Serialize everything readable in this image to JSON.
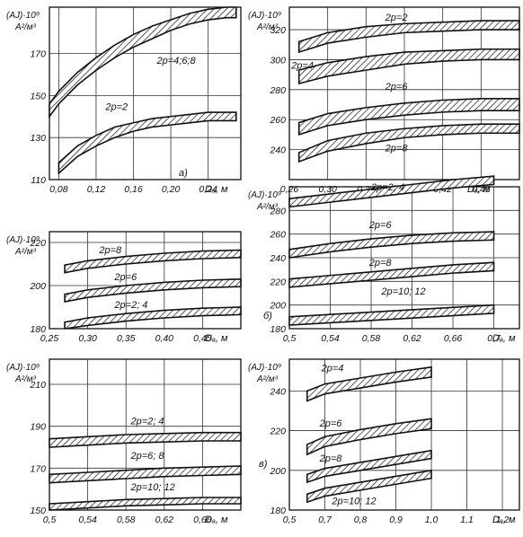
{
  "chart_data": [
    {
      "type": "area",
      "panel_label": "а)",
      "ylabel_1": "(AJ)·10⁹",
      "ylabel_2": "А²/м³",
      "xlabel": "Dₐ, м",
      "xlim": [
        0.07,
        0.275
      ],
      "ylim": [
        110,
        192
      ],
      "xticks": [
        "0,08",
        "0,12",
        "0,16",
        "0,20",
        "0,24"
      ],
      "xtick_values": [
        0.08,
        0.12,
        0.16,
        0.2,
        0.24
      ],
      "yticks": [
        "110",
        "130",
        "150",
        "170"
      ],
      "ytick_values": [
        110,
        130,
        150,
        170
      ],
      "grid": true,
      "series": [
        {
          "name": "2p=4;6;8",
          "x": [
            0.07,
            0.08,
            0.1,
            0.12,
            0.14,
            0.16,
            0.18,
            0.2,
            0.22,
            0.24,
            0.26,
            0.27
          ],
          "upper": [
            146,
            152,
            161,
            168,
            174,
            179,
            183,
            186,
            189,
            191,
            192,
            192
          ],
          "lower": [
            140,
            146,
            155,
            162,
            168,
            173,
            177,
            181,
            184,
            186,
            187,
            187
          ]
        },
        {
          "name": "2p=2",
          "x": [
            0.08,
            0.1,
            0.12,
            0.14,
            0.16,
            0.18,
            0.2,
            0.22,
            0.24,
            0.26,
            0.27
          ],
          "upper": [
            118,
            126,
            131,
            135,
            137,
            139,
            140,
            141,
            142,
            142,
            142
          ],
          "lower": [
            113,
            121,
            126,
            130,
            133,
            135,
            136,
            137,
            138,
            138,
            138
          ]
        }
      ],
      "labels": [
        {
          "text": "2p=4;6;8",
          "x": 0.185,
          "y": 165
        },
        {
          "text": "2p=2",
          "x": 0.13,
          "y": 143
        }
      ]
    },
    {
      "type": "area",
      "panel_label": "",
      "ylabel_1": "(AJ)·10⁹",
      "ylabel_2": "А²/м³",
      "xlabel": "Dₐ, м",
      "xlim": [
        0.26,
        0.5
      ],
      "ylim": [
        220,
        335
      ],
      "xticks": [
        "0,26",
        "0,30",
        "0,34",
        "0,38",
        "0,42",
        "0,46"
      ],
      "xtick_values": [
        0.26,
        0.3,
        0.34,
        0.38,
        0.42,
        0.46
      ],
      "yticks": [
        "240",
        "260",
        "280",
        "300",
        "320"
      ],
      "ytick_values": [
        240,
        260,
        280,
        300,
        320
      ],
      "grid": true,
      "series": [
        {
          "name": "2p=2",
          "x": [
            0.27,
            0.3,
            0.34,
            0.38,
            0.42,
            0.46,
            0.5
          ],
          "upper": [
            312,
            318,
            322,
            324,
            325,
            326,
            326
          ],
          "lower": [
            305,
            311,
            315,
            318,
            319,
            320,
            320
          ]
        },
        {
          "name": "2p=4",
          "x": [
            0.27,
            0.3,
            0.34,
            0.38,
            0.42,
            0.46,
            0.5
          ],
          "upper": [
            293,
            298,
            302,
            305,
            306,
            307,
            307
          ],
          "lower": [
            284,
            289,
            293,
            297,
            299,
            300,
            300
          ]
        },
        {
          "name": "2p=6",
          "x": [
            0.27,
            0.3,
            0.34,
            0.38,
            0.42,
            0.46,
            0.5
          ],
          "upper": [
            258,
            264,
            268,
            271,
            273,
            274,
            274
          ],
          "lower": [
            250,
            256,
            260,
            263,
            265,
            266,
            266
          ]
        },
        {
          "name": "2p=8",
          "x": [
            0.27,
            0.3,
            0.34,
            0.38,
            0.42,
            0.46,
            0.5
          ],
          "upper": [
            238,
            246,
            251,
            254,
            256,
            257,
            257
          ],
          "lower": [
            232,
            239,
            244,
            248,
            250,
            251,
            251
          ]
        }
      ],
      "labels": [
        {
          "text": "2p=2",
          "x": 0.36,
          "y": 326
        },
        {
          "text": "2p=4",
          "x": 0.262,
          "y": 294
        },
        {
          "text": "2p=6",
          "x": 0.36,
          "y": 280
        },
        {
          "text": "2p=8",
          "x": 0.36,
          "y": 239
        }
      ]
    },
    {
      "type": "area",
      "panel_label": "б)",
      "ylabel_1": "(AJ)·10⁹",
      "ylabel_2": "А²/м³",
      "xlabel": "Dₐ, м",
      "xlim": [
        0.25,
        0.5
      ],
      "ylim": [
        180,
        225
      ],
      "xticks": [
        "0,25",
        "0,30",
        "0,35",
        "0,40",
        "0,45"
      ],
      "xtick_values": [
        0.25,
        0.3,
        0.35,
        0.4,
        0.45
      ],
      "yticks": [
        "180",
        "200",
        "220"
      ],
      "ytick_values": [
        180,
        200,
        220
      ],
      "grid": true,
      "series": [
        {
          "name": "2p=8",
          "x": [
            0.27,
            0.3,
            0.35,
            0.4,
            0.45,
            0.5
          ],
          "upper": [
            209.5,
            211.5,
            213.5,
            215,
            216,
            216.5
          ],
          "lower": [
            206,
            208,
            210,
            211.5,
            212.5,
            213
          ]
        },
        {
          "name": "2p=6",
          "x": [
            0.27,
            0.3,
            0.35,
            0.4,
            0.45,
            0.5
          ],
          "upper": [
            196,
            198,
            200,
            201.5,
            202.5,
            203
          ],
          "lower": [
            192.5,
            194.5,
            196.5,
            198,
            199,
            199.5
          ]
        },
        {
          "name": "2p=2; 4",
          "x": [
            0.27,
            0.3,
            0.35,
            0.4,
            0.45,
            0.5
          ],
          "upper": [
            183,
            185,
            187,
            188.5,
            189.5,
            190
          ],
          "lower": [
            180,
            181.5,
            183.5,
            185,
            186,
            186.5
          ]
        }
      ],
      "labels": [
        {
          "text": "2p=8",
          "x": 0.315,
          "y": 215
        },
        {
          "text": "2p=6",
          "x": 0.335,
          "y": 202.5
        },
        {
          "text": "2p=2; 4",
          "x": 0.335,
          "y": 189.5
        }
      ]
    },
    {
      "type": "area",
      "panel_label": "б)",
      "ylabel_1": "(AJ)·10⁹",
      "ylabel_2": "А²/м³",
      "xlabel": "Dₐ, м",
      "xlim": [
        0.5,
        0.725
      ],
      "ylim": [
        180,
        300
      ],
      "xticks": [
        "0,5",
        "0,54",
        "0,58",
        "0,62",
        "0,66",
        "0,7"
      ],
      "xtick_values": [
        0.5,
        0.54,
        0.58,
        0.62,
        0.66,
        0.7
      ],
      "yticks": [
        "180",
        "200",
        "220",
        "240",
        "260",
        "280"
      ],
      "ytick_values": [
        180,
        200,
        220,
        240,
        260,
        280
      ],
      "grid": true,
      "series": [
        {
          "name": "2p=2; 4",
          "x": [
            0.5,
            0.54,
            0.58,
            0.62,
            0.66,
            0.7
          ],
          "upper": [
            290,
            294,
            298,
            302,
            306,
            309
          ],
          "lower": [
            283,
            287,
            291,
            295,
            299,
            302
          ]
        },
        {
          "name": "2p=6",
          "x": [
            0.5,
            0.54,
            0.58,
            0.62,
            0.66,
            0.7
          ],
          "upper": [
            247,
            252,
            256,
            259,
            261,
            262
          ],
          "lower": [
            240,
            245,
            249,
            252,
            254,
            255
          ]
        },
        {
          "name": "2p=8",
          "x": [
            0.5,
            0.54,
            0.58,
            0.62,
            0.66,
            0.7
          ],
          "upper": [
            222,
            225,
            228,
            231,
            234,
            236
          ],
          "lower": [
            215,
            218,
            221,
            224,
            227,
            229
          ]
        },
        {
          "name": "2p=10; 12",
          "x": [
            0.5,
            0.54,
            0.58,
            0.62,
            0.66,
            0.7
          ],
          "upper": [
            190,
            192,
            194,
            196,
            198,
            200
          ],
          "lower": [
            183,
            185,
            187,
            189,
            191,
            193
          ]
        }
      ],
      "labels": [
        {
          "text": "2p=2; 4",
          "x": 0.58,
          "y": 297
        },
        {
          "text": "2p=6",
          "x": 0.578,
          "y": 265
        },
        {
          "text": "2p=8",
          "x": 0.578,
          "y": 233
        },
        {
          "text": "2p=10; 12",
          "x": 0.59,
          "y": 209
        }
      ]
    },
    {
      "type": "area",
      "panel_label": "в)",
      "ylabel_1": "(AJ)·10⁹",
      "ylabel_2": "А²/м³",
      "xlabel": "Dₐ, м",
      "xlim": [
        0.5,
        0.7
      ],
      "ylim": [
        150,
        222
      ],
      "xticks": [
        "0,5",
        "0,54",
        "0,58",
        "0,62",
        "0,66"
      ],
      "xtick_values": [
        0.5,
        0.54,
        0.58,
        0.62,
        0.66
      ],
      "yticks": [
        "150",
        "170",
        "190",
        "210"
      ],
      "ytick_values": [
        150,
        170,
        190,
        210
      ],
      "grid": true,
      "series": [
        {
          "name": "2p=2; 4",
          "x": [
            0.5,
            0.54,
            0.58,
            0.62,
            0.66,
            0.7
          ],
          "upper": [
            184,
            185,
            186,
            186.5,
            187,
            187
          ],
          "lower": [
            180,
            181,
            182,
            182.5,
            183,
            183
          ]
        },
        {
          "name": "2p=6; 8",
          "x": [
            0.5,
            0.54,
            0.58,
            0.62,
            0.66,
            0.7
          ],
          "upper": [
            167,
            168,
            169,
            170,
            170.5,
            171
          ],
          "lower": [
            163,
            164,
            165,
            166,
            166.5,
            167
          ]
        },
        {
          "name": "2p=10; 12",
          "x": [
            0.5,
            0.54,
            0.58,
            0.62,
            0.66,
            0.7
          ],
          "upper": [
            153,
            154,
            155,
            155.5,
            156,
            156
          ],
          "lower": [
            150,
            151,
            152,
            152.5,
            153,
            153
          ]
        }
      ],
      "labels": [
        {
          "text": "2p=2; 4",
          "x": 0.585,
          "y": 191
        },
        {
          "text": "2p=6; 8",
          "x": 0.585,
          "y": 174.5
        },
        {
          "text": "2p=10; 12",
          "x": 0.585,
          "y": 159.5
        }
      ]
    },
    {
      "type": "area",
      "panel_label": "",
      "ylabel_1": "(AJ)·10⁹",
      "ylabel_2": "А²/м³",
      "xlabel": "Dₐ, м",
      "xlim": [
        0.5,
        1.25
      ],
      "ylim": [
        180,
        256
      ],
      "xticks": [
        "0,5",
        "0,7",
        "0,8",
        "0,9",
        "1,0",
        "1,1",
        "1,2"
      ],
      "xtick_values": [
        0.5,
        0.7,
        0.8,
        0.9,
        1.0,
        1.1,
        1.2
      ],
      "xtick_positions": [
        0.5,
        0.6667,
        0.8333,
        1.0,
        1.1667,
        1.3333,
        1.5
      ],
      "yticks": [
        "180",
        "200",
        "220",
        "240"
      ],
      "ytick_values": [
        180,
        200,
        220,
        240
      ],
      "grid": true,
      "series": [
        {
          "name": "2p=4",
          "x": [
            0.6,
            0.7,
            0.8,
            0.9,
            1.0
          ],
          "upper": [
            240,
            243.5,
            246.5,
            249.5,
            252
          ],
          "lower": [
            235,
            238.5,
            241.5,
            244.5,
            247
          ]
        },
        {
          "name": "2p=6",
          "x": [
            0.6,
            0.7,
            0.8,
            0.9,
            1.0
          ],
          "upper": [
            213,
            217,
            220.5,
            223.5,
            226
          ],
          "lower": [
            208,
            212,
            215.5,
            218.5,
            221
          ]
        },
        {
          "name": "2p=8",
          "x": [
            0.6,
            0.7,
            0.8,
            0.9,
            1.0
          ],
          "upper": [
            198,
            201,
            204,
            207,
            210
          ],
          "lower": [
            194,
            197,
            200,
            203,
            206
          ]
        },
        {
          "name": "2p=10; 12",
          "x": [
            0.6,
            0.7,
            0.8,
            0.9,
            1.0
          ],
          "upper": [
            188,
            191,
            194,
            197,
            200
          ],
          "lower": [
            184,
            187,
            190,
            193,
            196
          ]
        }
      ],
      "labels": [
        {
          "text": "2p=4",
          "x": 0.68,
          "y": 250
        },
        {
          "text": "2p=6",
          "x": 0.67,
          "y": 222
        },
        {
          "text": "2p=8",
          "x": 0.67,
          "y": 204.5
        },
        {
          "text": "2p=10; 12",
          "x": 0.72,
          "y": 183
        }
      ]
    }
  ]
}
